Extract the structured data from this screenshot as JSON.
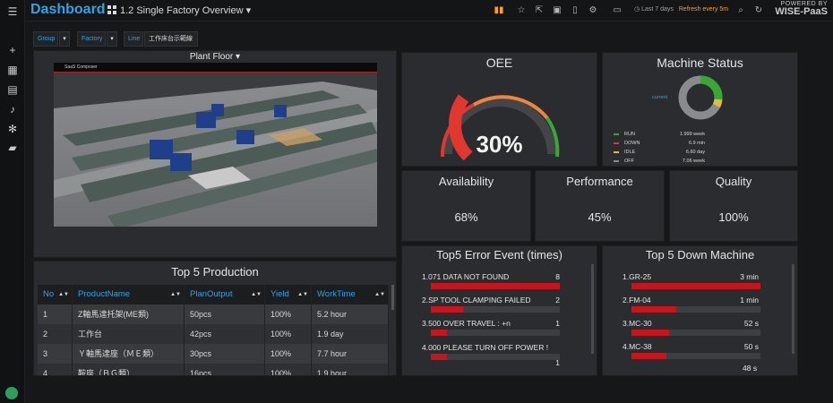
{
  "topbar": {
    "brand": "Dashboard",
    "title": "1.2 Single Factory Overview",
    "time_range": "Last 7 days",
    "refresh": "Refresh every 5m",
    "powered_by": "POWERED BY",
    "powered_brand": "WISE-PaaS"
  },
  "filters": {
    "group_label": "Group",
    "factory_label": "Factory",
    "line_label": "Line",
    "line_value": "工作床台示範線"
  },
  "plant_floor": {
    "title": "Plant Floor",
    "header_text": "SaaS Composer"
  },
  "oee": {
    "title": "OEE",
    "value": "30%",
    "fraction": 0.3
  },
  "machine_status": {
    "title": "Machine Status",
    "column_header": "current",
    "rows": [
      {
        "name": "RUN",
        "value": "1.999 week",
        "color": "#37a835"
      },
      {
        "name": "DOWN",
        "value": "6.9 min",
        "color": "#e0382f"
      },
      {
        "name": "IDLE",
        "value": "6.60 day",
        "color": "#e8b93f"
      },
      {
        "name": "OFF",
        "value": "7.06 week",
        "color": "#8a8b8e"
      }
    ]
  },
  "availability": {
    "title": "Availability",
    "value": "68%"
  },
  "performance": {
    "title": "Performance",
    "value": "45%"
  },
  "quality": {
    "title": "Quality",
    "value": "100%"
  },
  "production": {
    "title": "Top 5 Production",
    "headers": [
      "No",
      "ProductName",
      "PlanOutput",
      "Yield",
      "WorkTime"
    ],
    "rows": [
      [
        "1",
        "Z軸馬達托架(ME類)",
        "50pcs",
        "100%",
        "5.2 hour"
      ],
      [
        "2",
        "工作台",
        "42pcs",
        "100%",
        "1.9 day"
      ],
      [
        "3",
        "Ｙ軸馬達座（ＭＥ類）",
        "30pcs",
        "100%",
        "7.7 hour"
      ],
      [
        "4",
        "鞍座（ＢＧ類）",
        "16pcs",
        "100%",
        "1.9 hour"
      ]
    ]
  },
  "errors": {
    "title": "Top5 Error Event (times)",
    "items": [
      {
        "label": "1.071 DATA NOT FOUND",
        "value": "8",
        "fraction": 1.0
      },
      {
        "label": "2.SP TOOL CLAMPING FAILED",
        "value": "2",
        "fraction": 0.25
      },
      {
        "label": "3.500 OVER TRAVEL : +n",
        "value": "1",
        "fraction": 0.125
      },
      {
        "label": "4.000 PLEASE TURN OFF POWER !",
        "value": "1",
        "fraction": 0.125
      }
    ]
  },
  "down": {
    "title": "Top 5 Down Machine",
    "items": [
      {
        "label": "1.GR-25",
        "value": "3 min",
        "fraction": 1.0
      },
      {
        "label": "2.FM-04",
        "value": "1 min",
        "fraction": 0.35
      },
      {
        "label": "3.MC-30",
        "value": "52 s",
        "fraction": 0.29
      },
      {
        "label": "4.MC-38",
        "value": "50 s",
        "fraction": 0.27
      }
    ],
    "cut_value": "48 s"
  }
}
